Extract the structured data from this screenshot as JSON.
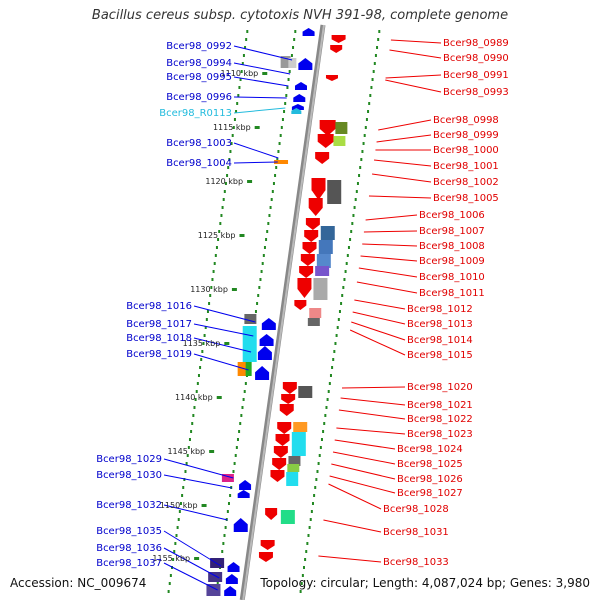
{
  "title": "Bacillus cereus subsp. cytotoxis NVH 391-98, complete genome",
  "accession": "Accession: NC_009674",
  "topology": "Topology: circular; Length: 4,087,024 bp; Genes: 3,980",
  "kbp_ticks": [
    "1110 kbp",
    "1115 kbp",
    "1120 kbp",
    "1125 kbp",
    "1130 kbp",
    "1135 kbp",
    "1140 kbp",
    "1145 kbp",
    "1150 kbp",
    "1155 kbp"
  ],
  "left_labels": [
    "Bcer98_0992",
    "Bcer98_0994",
    "Bcer98_0995",
    "Bcer98_0996",
    "Bcer98_R0113",
    "Bcer98_1003",
    "Bcer98_1004",
    "Bcer98_1016",
    "Bcer98_1017",
    "Bcer98_1018",
    "Bcer98_1019",
    "Bcer98_1029",
    "Bcer98_1030",
    "Bcer98_1032",
    "Bcer98_1035",
    "Bcer98_1036",
    "Bcer98_1037"
  ],
  "right_labels": [
    "Bcer98_0989",
    "Bcer98_0990",
    "Bcer98_0991",
    "Bcer98_0993",
    "Bcer98_0998",
    "Bcer98_0999",
    "Bcer98_1000",
    "Bcer98_1001",
    "Bcer98_1002",
    "Bcer98_1005",
    "Bcer98_1006",
    "Bcer98_1007",
    "Bcer98_1008",
    "Bcer98_1009",
    "Bcer98_1010",
    "Bcer98_1011",
    "Bcer98_1012",
    "Bcer98_1013",
    "Bcer98_1014",
    "Bcer98_1015",
    "Bcer98_1020",
    "Bcer98_1021",
    "Bcer98_1022",
    "Bcer98_1023",
    "Bcer98_1024",
    "Bcer98_1025",
    "Bcer98_1026",
    "Bcer98_1027",
    "Bcer98_1028",
    "Bcer98_1031",
    "Bcer98_1033"
  ],
  "colors": {
    "forward_strand": "#0000ee",
    "reverse_strand": "#ee0000",
    "rna": "#22bbdd",
    "backbone": "#999999",
    "dots": "#228822"
  }
}
